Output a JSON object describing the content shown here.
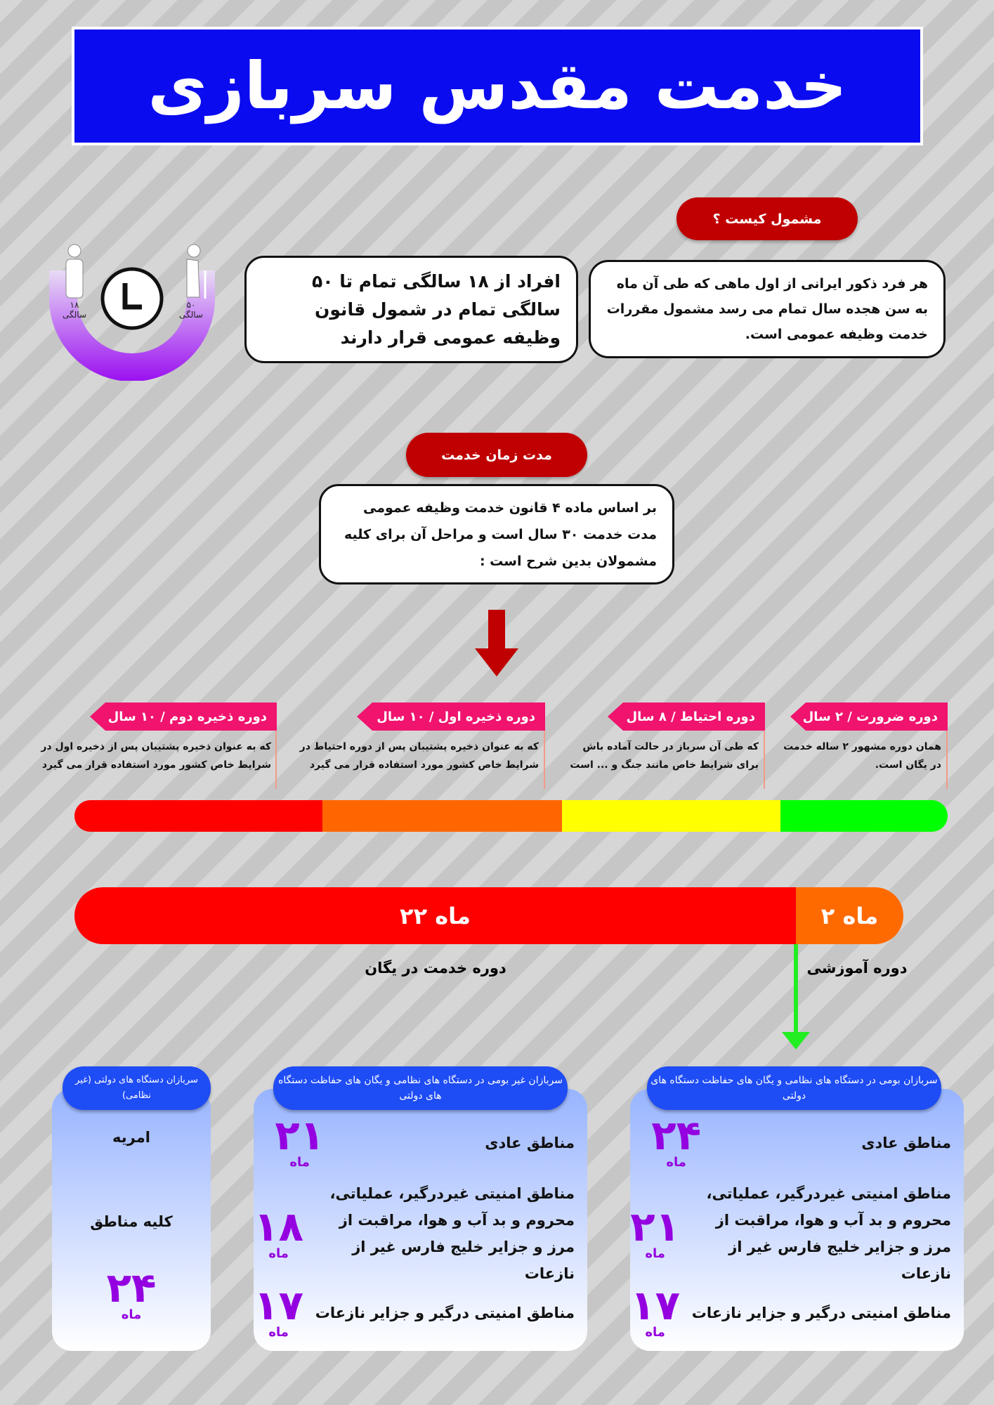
{
  "title": "خدمت مقدس سربازی",
  "who": {
    "label": "مشمول کیست ؟",
    "desc": "هر فرد ذکور ایرانی از اول ماهی که طی آن ماه به سن هجده سال تمام می رسد مشمول مقررات خدمت وظیفه عمومی است.",
    "age_text": "افراد از ۱۸ سالگی تمام تا ۵۰ سالگی تمام در شمول قانون وظیفه عمومی قرار دارند",
    "age_min": "۱۸",
    "age_max": "۵۰",
    "age_unit": "سالگی"
  },
  "duration": {
    "label": "مدت زمان خدمت",
    "desc": "بر اساس ماده ۴ قانون خدمت وظیفه عمومی مدت خدمت ۳۰ سال است و مراحل آن برای کلیه مشمولان بدین شرح است :"
  },
  "periods": [
    {
      "title": "دوره ضرورت / ۲ سال",
      "desc": "همان دوره مشهور ۲ ساله خدمت در یگان است.",
      "color": "#00ff00"
    },
    {
      "title": "دوره احتیاط / ۸ سال",
      "desc": "که طی آن سرباز در حالت آماده باش برای شرایط خاص مانند جنگ و ... است",
      "color": "#ffff00"
    },
    {
      "title": "دوره ذخیره اول / ۱۰ سال",
      "desc": "که به عنوان ذخیره پشتیبان پس از دوره احتیاط در شرایط خاص کشور مورد استفاده قرار می گیرد",
      "color": "#ff6600"
    },
    {
      "title": "دوره ذخیره دوم / ۱۰ سال",
      "desc": "که به عنوان ذخیره پشتیبان پس از ذخیره اول در شرایط خاص کشور مورد استفاده قرار می گیرد",
      "color": "#ff0000"
    }
  ],
  "service_bar": {
    "training": "۲ ماه",
    "unit": "۲۲ ماه",
    "training_label": "دوره آموزشی",
    "unit_label": "دوره خدمت در یگان"
  },
  "cards": [
    {
      "header": "سربازان بومی در دستگاه های نظامی و یگان های حفاظت دستگاه های دولتی",
      "rows": [
        {
          "text": "مناطق عادی",
          "num": "۲۴",
          "unit": "ماه"
        },
        {
          "text": "مناطق امنیتی غیردرگیر، عملیاتی، محروم و بد آب و هوا، مراقبت از مرز و جزایر خلیج فارس غیر از نازعات",
          "num": "۲۱",
          "unit": "ماه"
        },
        {
          "text": "مناطق امنیتی درگیر و جزایر نازعات",
          "num": "۱۷",
          "unit": "ماه"
        }
      ]
    },
    {
      "header": "سربازان غیر بومی در دستگاه های نظامی و یگان های حفاظت دستگاه های دولتی",
      "rows": [
        {
          "text": "مناطق عادی",
          "num": "۲۱",
          "unit": "ماه"
        },
        {
          "text": "مناطق امنیتی غیردرگیر، عملیاتی، محروم و بد آب و هوا، مراقبت از مرز و جزایر خلیج فارس غیر از نازعات",
          "num": "۱۸",
          "unit": "ماه"
        },
        {
          "text": "مناطق امنیتی درگیر و جزایر نازعات",
          "num": "۱۷",
          "unit": "ماه"
        }
      ]
    },
    {
      "header": "سربازان دستگاه های دولتی (غیر نظامی)",
      "type": "امریه",
      "area": "کلیه مناطق",
      "num": "۲۴",
      "unit": "ماه"
    }
  ]
}
